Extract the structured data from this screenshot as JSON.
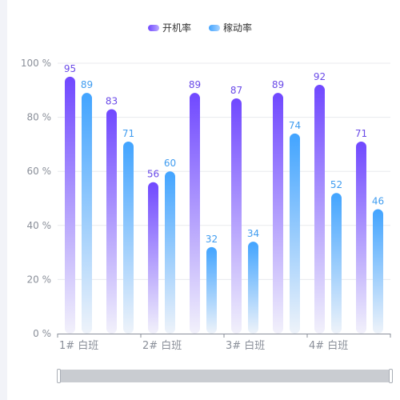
{
  "chart_data": {
    "type": "bar",
    "categories": [
      "1# 白班",
      "",
      "2# 白班",
      "",
      "3# 白班",
      "",
      "4# 白班",
      ""
    ],
    "series": [
      {
        "name": "开机率",
        "values": [
          95,
          83,
          56,
          89,
          87,
          89,
          92,
          71
        ],
        "color_top": "#7048ff",
        "color_bottom": "#f2f1fb"
      },
      {
        "name": "稼动率",
        "values": [
          89,
          71,
          60,
          32,
          34,
          74,
          52,
          46
        ],
        "color_top": "#42a4ff",
        "color_bottom": "#eef3fa"
      }
    ],
    "yticks": [
      "0 %",
      "20 %",
      "40 %",
      "60 %",
      "80 %",
      "100 %"
    ],
    "ylim": [
      0,
      100
    ],
    "grid": true,
    "legend_position": "top-center",
    "data_labels": true,
    "dataZoom_slider": true
  }
}
